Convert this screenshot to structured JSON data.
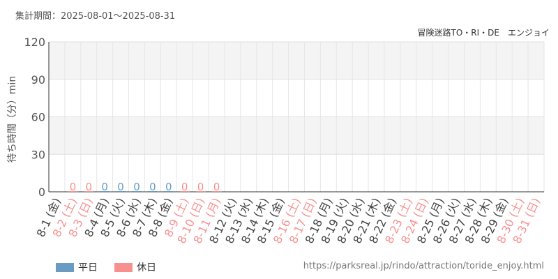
{
  "header": {
    "period": "集計期間：2025-08-01〜2025-08-31",
    "attraction": "冒険迷路TO・RI・DE　エンジョイ"
  },
  "legend": {
    "weekday_label": "平日",
    "holiday_label": "休日",
    "weekday_color": "#6a9bc3",
    "holiday_color": "#f99090"
  },
  "footer": {
    "url": "https://parksreal.jp/rindo/attraction/toride_enjoy.html"
  },
  "chart_data": {
    "type": "bar",
    "ylabel": "待ち時間（分）min",
    "ylim": [
      0,
      120
    ],
    "yticks": [
      0,
      30,
      60,
      90,
      120
    ],
    "grid": true,
    "categories": [
      "8-1 (金)",
      "8-2 (土)",
      "8-3 (日)",
      "8-4 (月)",
      "8-5 (火)",
      "8-6 (水)",
      "8-7 (木)",
      "8-8 (金)",
      "8-9 (土)",
      "8-10 (日)",
      "8-11 (月)",
      "8-12 (火)",
      "8-13 (水)",
      "8-14 (木)",
      "8-15 (金)",
      "8-16 (土)",
      "8-17 (日)",
      "8-18 (月)",
      "8-19 (火)",
      "8-20 (水)",
      "8-21 (木)",
      "8-22 (金)",
      "8-23 (土)",
      "8-24 (日)",
      "8-25 (月)",
      "8-26 (火)",
      "8-27 (水)",
      "8-28 (木)",
      "8-29 (金)",
      "8-30 (土)",
      "8-31 (日)"
    ],
    "holiday": [
      false,
      true,
      true,
      false,
      false,
      false,
      false,
      false,
      true,
      true,
      true,
      false,
      false,
      false,
      false,
      true,
      true,
      false,
      false,
      false,
      false,
      false,
      true,
      true,
      false,
      false,
      false,
      false,
      false,
      true,
      true
    ],
    "values": [
      null,
      0,
      0,
      0,
      0,
      0,
      0,
      0,
      0,
      0,
      0,
      null,
      null,
      null,
      null,
      null,
      null,
      null,
      null,
      null,
      null,
      null,
      null,
      null,
      null,
      null,
      null,
      null,
      null,
      null,
      null
    ]
  }
}
